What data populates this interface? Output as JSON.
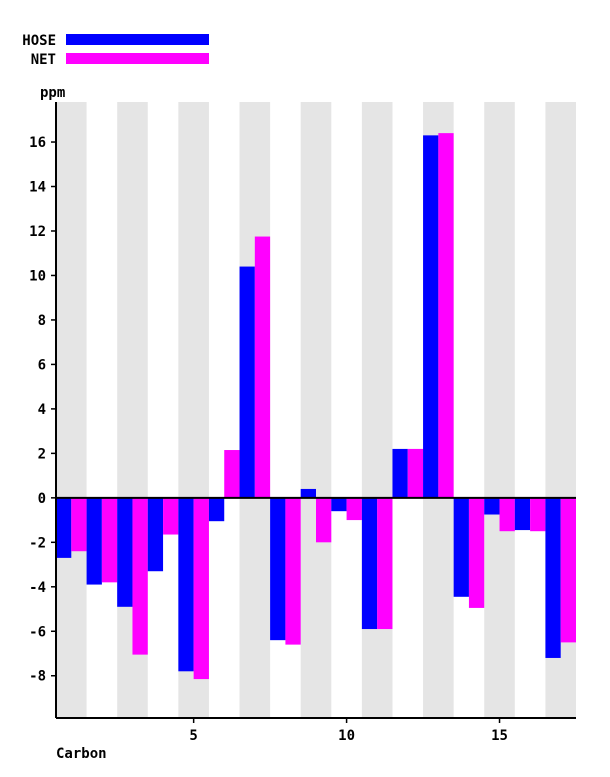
{
  "chart_data": {
    "type": "bar",
    "title": "",
    "xlabel": "Carbon",
    "ylabel": "ppm",
    "categories": [
      "1",
      "2",
      "3",
      "4",
      "5",
      "6",
      "7",
      "8",
      "9",
      "10",
      "11",
      "12",
      "13",
      "14",
      "15",
      "16",
      "17"
    ],
    "x_tick_labels": [
      "5",
      "10",
      "15"
    ],
    "x_tick_values": [
      5,
      10,
      15
    ],
    "y_tick_values": [
      -8,
      -6,
      -4,
      -2,
      0,
      2,
      4,
      6,
      8,
      10,
      12,
      14,
      16
    ],
    "y_tick_labels": [
      "-8",
      "-6",
      "-4",
      "-2",
      "0",
      "2",
      "4",
      "6",
      "8",
      "10",
      "12",
      "14",
      "16"
    ],
    "ylim": [
      -9.9,
      17.8
    ],
    "xlim": [
      0.5,
      17.5
    ],
    "legend_position": "top-left",
    "series": [
      {
        "name": "HOSE",
        "color": "#0000ff",
        "values": [
          -2.7,
          -3.9,
          -4.9,
          -3.3,
          -7.8,
          -1.05,
          10.4,
          -6.4,
          0.4,
          -0.6,
          -5.9,
          2.2,
          16.3,
          -4.45,
          -0.75,
          -1.45,
          -7.2
        ]
      },
      {
        "name": "NET",
        "color": "#ff00ff",
        "values": [
          -2.4,
          -3.8,
          -7.05,
          -1.65,
          -8.15,
          2.15,
          11.75,
          -6.6,
          -2.0,
          -1.0,
          -5.9,
          2.2,
          16.4,
          -4.95,
          -1.5,
          -1.5,
          -6.5
        ]
      }
    ],
    "band_color": "#e5e5e5"
  }
}
